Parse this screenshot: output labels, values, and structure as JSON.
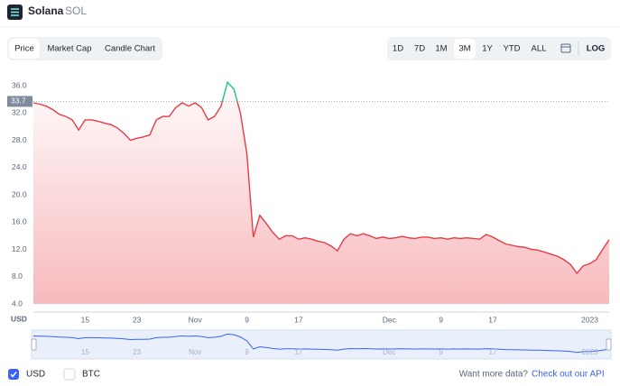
{
  "header": {
    "title": "Solana",
    "symbol": "SOL"
  },
  "tabs": [
    "Price",
    "Market Cap",
    "Candle Chart"
  ],
  "ranges": [
    "1D",
    "7D",
    "1M",
    "3M",
    "1Y",
    "YTD",
    "ALL"
  ],
  "log_button": "LOG",
  "chart_data": {
    "type": "line",
    "y_axis_label": "USD",
    "categories": [
      null,
      null,
      null,
      null,
      null,
      null,
      null,
      null,
      "15",
      null,
      null,
      null,
      null,
      null,
      null,
      null,
      "23",
      null,
      null,
      null,
      null,
      null,
      null,
      null,
      null,
      "Nov",
      null,
      null,
      null,
      null,
      null,
      null,
      null,
      "9",
      null,
      null,
      null,
      null,
      null,
      null,
      null,
      "17",
      null,
      null,
      null,
      null,
      null,
      null,
      null,
      null,
      null,
      null,
      null,
      null,
      null,
      "Dec",
      null,
      null,
      null,
      null,
      null,
      null,
      null,
      "9",
      null,
      null,
      null,
      null,
      null,
      null,
      null,
      "17",
      null,
      null,
      null,
      null,
      null,
      null,
      null,
      null,
      null,
      null,
      null,
      null,
      null,
      null,
      "2023",
      null,
      null,
      null
    ],
    "values": [
      33.5,
      33.3,
      33.0,
      32.5,
      31.8,
      31.5,
      31.0,
      29.5,
      31.0,
      31.0,
      30.8,
      30.5,
      30.3,
      29.8,
      29.0,
      28.0,
      28.3,
      28.5,
      28.8,
      31.0,
      31.5,
      31.5,
      32.8,
      33.5,
      33.0,
      33.5,
      32.8,
      31.0,
      31.5,
      33.0,
      36.5,
      35.5,
      32.0,
      26.0,
      13.8,
      17.0,
      15.8,
      14.5,
      13.5,
      14.0,
      14.0,
      13.5,
      13.7,
      13.5,
      13.2,
      13.0,
      12.5,
      11.8,
      13.5,
      14.3,
      14.0,
      14.3,
      14.0,
      13.6,
      13.8,
      13.6,
      13.7,
      13.9,
      13.7,
      13.6,
      13.8,
      13.8,
      13.6,
      13.7,
      13.5,
      13.7,
      13.6,
      13.7,
      13.6,
      13.5,
      14.2,
      13.8,
      13.3,
      12.8,
      12.6,
      12.4,
      12.3,
      12.0,
      11.9,
      11.6,
      11.3,
      11.0,
      10.5,
      9.8,
      8.5,
      9.6,
      9.9,
      10.5,
      12.0,
      13.4
    ],
    "color": "#ea3943",
    "up_color": "#16c784",
    "baseline": 33.7,
    "ylim": [
      4,
      37
    ],
    "yticks": [
      {
        "value": 4,
        "label": "4.0"
      },
      {
        "value": 8,
        "label": "8.0"
      },
      {
        "value": 12,
        "label": "12.0"
      },
      {
        "value": 16,
        "label": "16.0"
      },
      {
        "value": 20,
        "label": "20.0"
      },
      {
        "value": 24,
        "label": "24.0"
      },
      {
        "value": 28,
        "label": "28.0"
      },
      {
        "value": 32,
        "label": "32.0"
      },
      {
        "value": 36,
        "label": "36.0"
      }
    ],
    "grid": false
  },
  "footer": {
    "currencies": [
      "USD",
      "BTC"
    ],
    "api_prompt": "Want more data?",
    "api_link": "Check out our API"
  }
}
